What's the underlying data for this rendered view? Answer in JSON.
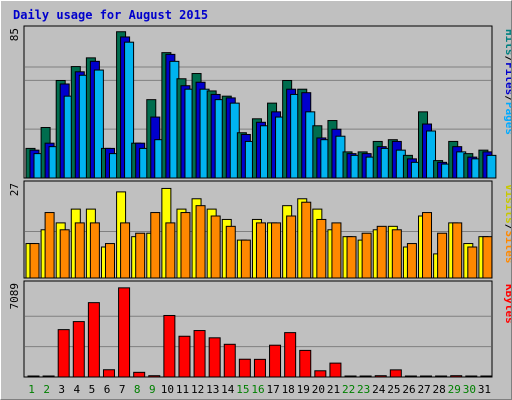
{
  "chart_data": {
    "type": "bar",
    "title": "Daily usage for August 2015",
    "categories": [
      "1",
      "2",
      "3",
      "4",
      "5",
      "6",
      "7",
      "8",
      "9",
      "10",
      "11",
      "12",
      "13",
      "14",
      "15",
      "16",
      "17",
      "18",
      "19",
      "20",
      "21",
      "22",
      "23",
      "24",
      "25",
      "26",
      "27",
      "28",
      "29",
      "30",
      "31"
    ],
    "weekend_days": [
      "1",
      "2",
      "8",
      "9",
      "15",
      "16",
      "22",
      "23",
      "29",
      "30"
    ],
    "panels": [
      {
        "id": "top",
        "ymax_label": "85",
        "ymax": 85,
        "right_labels": [
          {
            "text": "Hits",
            "color": "#008080"
          },
          {
            "text": "/",
            "color": "#000000"
          },
          {
            "text": "Files",
            "color": "#0000cc"
          },
          {
            "text": "/",
            "color": "#000000"
          },
          {
            "text": "Pages",
            "color": "#00aaff"
          }
        ],
        "series": [
          {
            "name": "Hits",
            "color": "#006d4e",
            "values": [
              17,
              29,
              56,
              64,
              69,
              17,
              84,
              20,
              45,
              72,
              57,
              60,
              50,
              47,
              26,
              34,
              43,
              56,
              51,
              30,
              33,
              15,
              15,
              21,
              22,
              13,
              38,
              10,
              21,
              14,
              16
            ]
          },
          {
            "name": "Files",
            "color": "#0000cc",
            "values": [
              16,
              20,
              54,
              61,
              67,
              17,
              81,
              20,
              35,
              71,
              53,
              55,
              48,
              46,
              25,
              32,
              38,
              51,
              49,
              23,
              28,
              14,
              14,
              18,
              21,
              11,
              31,
              9,
              18,
              12,
              15
            ]
          },
          {
            "name": "Pages",
            "color": "#00b4f0",
            "values": [
              14,
              18,
              47,
              59,
              62,
              14,
              78,
              17,
              22,
              67,
              51,
              51,
              45,
              43,
              21,
              30,
              35,
              48,
              38,
              22,
              24,
              13,
              12,
              17,
              16,
              9,
              27,
              8,
              15,
              11,
              13
            ]
          }
        ]
      },
      {
        "id": "middle",
        "ymax_label": "27",
        "ymax": 27,
        "right_labels": [
          {
            "text": "Visits",
            "color": "#c8c800"
          },
          {
            "text": "/",
            "color": "#000000"
          },
          {
            "text": "Sites",
            "color": "#ff8800"
          }
        ],
        "series": [
          {
            "name": "Visits",
            "color": "#ffff00",
            "values": [
              10,
              14,
              16,
              20,
              20,
              9,
              25,
              12,
              13,
              26,
              20,
              23,
              20,
              17,
              11,
              17,
              16,
              21,
              23,
              20,
              14,
              12,
              11,
              14,
              15,
              9,
              18,
              7,
              16,
              10,
              12
            ]
          },
          {
            "name": "Sites",
            "color": "#ff8800",
            "values": [
              10,
              19,
              14,
              16,
              16,
              10,
              16,
              13,
              19,
              16,
              19,
              21,
              18,
              15,
              11,
              16,
              16,
              18,
              22,
              17,
              16,
              12,
              13,
              15,
              14,
              10,
              19,
              13,
              16,
              9,
              12
            ]
          }
        ]
      },
      {
        "id": "bottom",
        "ymax_label": "7089",
        "ymax": 7089,
        "right_labels": [
          {
            "text": "KBytes",
            "color": "#ff0000"
          }
        ],
        "series": [
          {
            "name": "KBytes",
            "color": "#ff0000",
            "values": [
              60,
              60,
              3650,
              4270,
              5730,
              560,
              6870,
              360,
              100,
              4740,
              3140,
              3580,
              3020,
              2520,
              1370,
              1360,
              2450,
              3420,
              2050,
              480,
              1070,
              60,
              60,
              100,
              550,
              60,
              60,
              60,
              100,
              60,
              60
            ]
          }
        ]
      }
    ],
    "x_label_colors": {
      "weekday": "#000000",
      "weekend": "#008000"
    }
  }
}
